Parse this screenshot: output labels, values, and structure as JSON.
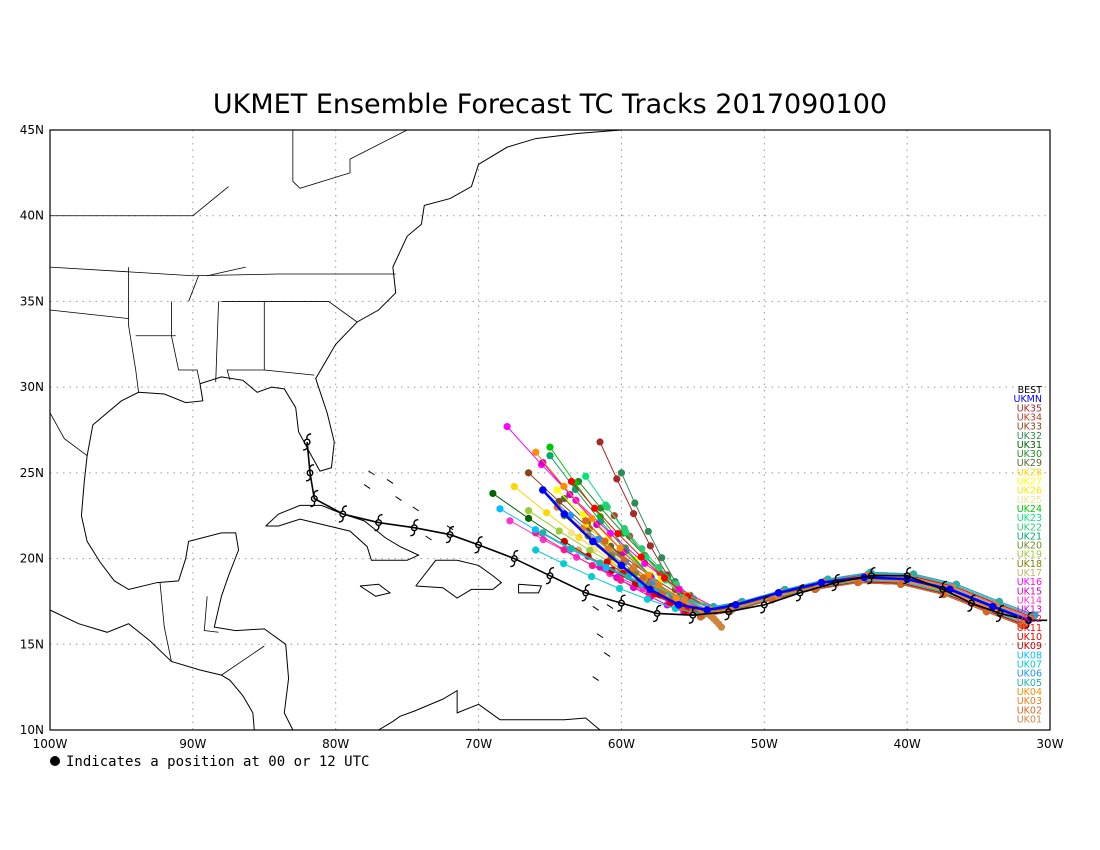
{
  "title": "UKMET Ensemble Forecast TC Tracks 2017090100",
  "footnote": "Indicates a position at 00 or 12 UTC",
  "axes": {
    "x_ticks": [
      "100W",
      "90W",
      "80W",
      "70W",
      "60W",
      "50W",
      "40W",
      "30W"
    ],
    "y_ticks": [
      "10N",
      "15N",
      "20N",
      "25N",
      "30N",
      "35N",
      "40N",
      "45N"
    ],
    "lon_range": [
      -100,
      -30
    ],
    "lat_range": [
      10,
      45
    ],
    "grid": "dotted"
  },
  "legend": [
    {
      "label": "BEST",
      "color": "#000000"
    },
    {
      "label": "UKMN",
      "color": "#0000ff"
    },
    {
      "label": "UK35",
      "color": "#a52a2a"
    },
    {
      "label": "UK34",
      "color": "#c0392b"
    },
    {
      "label": "UK33",
      "color": "#8b4513"
    },
    {
      "label": "UK32",
      "color": "#2e8b57"
    },
    {
      "label": "UK31",
      "color": "#006400"
    },
    {
      "label": "UK30",
      "color": "#228b22"
    },
    {
      "label": "UK29",
      "color": "#556b2f"
    },
    {
      "label": "UK28",
      "color": "#ffd700"
    },
    {
      "label": "UK27",
      "color": "#ffff00"
    },
    {
      "label": "UK26",
      "color": "#ffe600"
    },
    {
      "label": "UK25",
      "color": "#f0e68c"
    },
    {
      "label": "UK24",
      "color": "#00c800"
    },
    {
      "label": "UK23",
      "color": "#00e676"
    },
    {
      "label": "UK22",
      "color": "#2ecc71"
    },
    {
      "label": "UK21",
      "color": "#00a86b"
    },
    {
      "label": "UK20",
      "color": "#6b8e23"
    },
    {
      "label": "UK19",
      "color": "#9acd32"
    },
    {
      "label": "UK18",
      "color": "#808000"
    },
    {
      "label": "UK17",
      "color": "#bdb76b"
    },
    {
      "label": "UK16",
      "color": "#ff00ff"
    },
    {
      "label": "UK15",
      "color": "#d000d0"
    },
    {
      "label": "UK14",
      "color": "#ff33cc"
    },
    {
      "label": "UK13",
      "color": "#e000e0"
    },
    {
      "label": "UK12",
      "color": "#ff1493"
    },
    {
      "label": "UK11",
      "color": "#ff0000"
    },
    {
      "label": "UK10",
      "color": "#e00000"
    },
    {
      "label": "UK09",
      "color": "#c80000"
    },
    {
      "label": "UK08",
      "color": "#00bfff"
    },
    {
      "label": "UK07",
      "color": "#00ced1"
    },
    {
      "label": "UK06",
      "color": "#1e90ff"
    },
    {
      "label": "UK05",
      "color": "#20b2aa"
    },
    {
      "label": "UK04",
      "color": "#ff8c00"
    },
    {
      "label": "UK03",
      "color": "#e67e22"
    },
    {
      "label": "UK02",
      "color": "#d2691e"
    },
    {
      "label": "UK01",
      "color": "#cd853f"
    }
  ],
  "chart_data": {
    "type": "scatter",
    "title": "UKMET Ensemble Forecast TC Tracks 2017090100",
    "x_unit": "longitude (deg, negative = W)",
    "y_unit": "latitude (deg N)",
    "xlim": [
      -100,
      -30
    ],
    "ylim": [
      10,
      45
    ],
    "best_track": {
      "name": "BEST",
      "lon": [
        -31.5,
        -33.5,
        -35.5,
        -37.5,
        -40,
        -42.5,
        -45,
        -47.5,
        -50,
        -52.5,
        -55,
        -57.5,
        -60,
        -62.5,
        -65,
        -67.5,
        -70,
        -72,
        -74.5,
        -77,
        -79.5,
        -81.5,
        -81.8,
        -82
      ],
      "lat": [
        16.4,
        16.8,
        17.4,
        18.2,
        19.0,
        19.0,
        18.6,
        18.0,
        17.3,
        16.9,
        16.7,
        16.8,
        17.4,
        18.0,
        19.0,
        20.0,
        20.8,
        21.4,
        21.8,
        22.1,
        22.6,
        23.5,
        25.0,
        26.8
      ]
    },
    "ensemble_mean": {
      "name": "UKMN",
      "lon": [
        -31.5,
        -34,
        -37,
        -40,
        -43,
        -46,
        -49,
        -52,
        -54,
        -56,
        -58,
        -60,
        -62,
        -64,
        -65.5
      ],
      "lat": [
        16.4,
        17.2,
        18.2,
        18.8,
        18.9,
        18.6,
        18.0,
        17.3,
        17.0,
        17.3,
        18.2,
        19.6,
        21.0,
        22.6,
        24.0
      ]
    },
    "members_note": "35 members (UK01-UK35) with 12-hourly positions; recurving near 55-60W toward 62-68W, 20-27N",
    "members": [
      {
        "name": "UK35",
        "end_lon": -61.5,
        "end_lat": 26.8
      },
      {
        "name": "UK34",
        "end_lon": -60.5,
        "end_lat": 22.5
      },
      {
        "name": "UK33",
        "end_lon": -66.5,
        "end_lat": 25.0
      },
      {
        "name": "UK32",
        "end_lon": -60.0,
        "end_lat": 25.0
      },
      {
        "name": "UK31",
        "end_lon": -69.0,
        "end_lat": 23.8
      },
      {
        "name": "UK30",
        "end_lon": -63.0,
        "end_lat": 24.5
      },
      {
        "name": "UK29",
        "end_lon": -64.0,
        "end_lat": 23.5
      },
      {
        "name": "UK28",
        "end_lon": -67.5,
        "end_lat": 24.2
      },
      {
        "name": "UK27",
        "end_lon": -64.5,
        "end_lat": 24.0
      },
      {
        "name": "UK26",
        "end_lon": -62.5,
        "end_lat": 22.0
      },
      {
        "name": "UK25",
        "end_lon": -63.5,
        "end_lat": 21.5
      },
      {
        "name": "UK24",
        "end_lon": -65.0,
        "end_lat": 26.5
      },
      {
        "name": "UK23",
        "end_lon": -62.5,
        "end_lat": 24.8
      },
      {
        "name": "UK22",
        "end_lon": -61.0,
        "end_lat": 23.0
      },
      {
        "name": "UK21",
        "end_lon": -65.0,
        "end_lat": 26.0
      },
      {
        "name": "UK20",
        "end_lon": -64.0,
        "end_lat": 22.5
      },
      {
        "name": "UK19",
        "end_lon": -66.5,
        "end_lat": 22.8
      },
      {
        "name": "UK18",
        "end_lon": -62.0,
        "end_lat": 21.0
      },
      {
        "name": "UK17",
        "end_lon": -63.0,
        "end_lat": 20.5
      },
      {
        "name": "UK16",
        "end_lon": -68.0,
        "end_lat": 27.7
      },
      {
        "name": "UK15",
        "end_lon": -65.5,
        "end_lat": 25.6
      },
      {
        "name": "UK14",
        "end_lon": -67.8,
        "end_lat": 22.2
      },
      {
        "name": "UK13",
        "end_lon": -61.5,
        "end_lat": 19.5
      },
      {
        "name": "UK12",
        "end_lon": -66.0,
        "end_lat": 21.5
      },
      {
        "name": "UK11",
        "end_lon": -63.5,
        "end_lat": 24.5
      },
      {
        "name": "UK10",
        "end_lon": -61.0,
        "end_lat": 19.8
      },
      {
        "name": "UK09",
        "end_lon": -64.0,
        "end_lat": 21.0
      },
      {
        "name": "UK08",
        "end_lon": -68.5,
        "end_lat": 22.9
      },
      {
        "name": "UK07",
        "end_lon": -66.0,
        "end_lat": 20.5
      },
      {
        "name": "UK06",
        "end_lon": -65.5,
        "end_lat": 24.0
      },
      {
        "name": "UK05",
        "end_lon": -65.5,
        "end_lat": 21.5
      },
      {
        "name": "UK04",
        "end_lon": -66.0,
        "end_lat": 26.2
      },
      {
        "name": "UK03",
        "end_lon": -64.5,
        "end_lat": 23.0
      },
      {
        "name": "UK02",
        "end_lon": -62.5,
        "end_lat": 22.2
      },
      {
        "name": "UK01",
        "end_lon": -53.0,
        "end_lat": 16.0
      }
    ]
  }
}
